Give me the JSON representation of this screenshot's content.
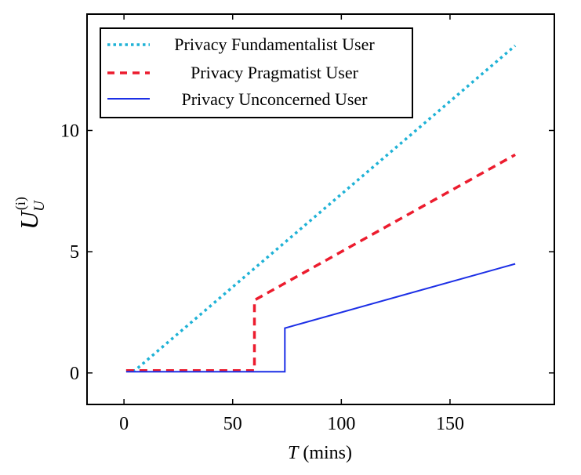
{
  "chart_data": {
    "type": "line",
    "title": "",
    "xlabel": {
      "var": "T",
      "unit": "(mins)"
    },
    "ylabel": {
      "base": "U",
      "sub": "U",
      "sup": "(i)"
    },
    "xlim": [
      -17,
      198
    ],
    "ylim": [
      -1.3,
      14.8
    ],
    "xticks": [
      0,
      50,
      100,
      150
    ],
    "yticks": [
      0,
      5,
      10
    ],
    "xtick_labels": [
      "0",
      "50",
      "100",
      "150"
    ],
    "ytick_labels": [
      "0",
      "5",
      "10"
    ],
    "grid": false,
    "legend_position": "top-left",
    "series": [
      {
        "name": "Privacy Fundamentalist User",
        "color": "#1fb2d6",
        "style": "dotted",
        "x": [
          1,
          5,
          180
        ],
        "y": [
          0.1,
          0.1,
          13.5
        ]
      },
      {
        "name": "Privacy Pragmatist User",
        "color": "#ec1c2e",
        "style": "dashed",
        "x": [
          1,
          60,
          60,
          180
        ],
        "y": [
          0.1,
          0.1,
          3.0,
          9.0
        ]
      },
      {
        "name": "Privacy Unconcerned User",
        "color": "#1c2fe6",
        "style": "solid",
        "x": [
          1,
          74,
          74,
          180
        ],
        "y": [
          0.05,
          0.05,
          1.85,
          4.5
        ]
      }
    ]
  }
}
